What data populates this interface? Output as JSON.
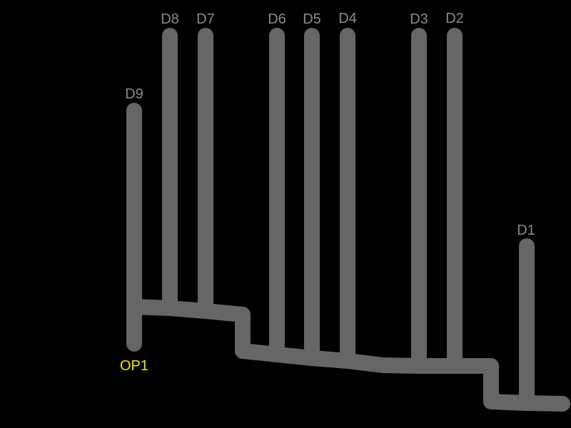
{
  "colors": {
    "background": "#000000",
    "trace": "#666666",
    "drain_label": "#8a8a8a",
    "outlet_label": "#f2e600"
  },
  "outlet": {
    "label": "OP1"
  },
  "drains": [
    {
      "label": "D9"
    },
    {
      "label": "D8"
    },
    {
      "label": "D7"
    },
    {
      "label": "D6"
    },
    {
      "label": "D5"
    },
    {
      "label": "D4"
    },
    {
      "label": "D3"
    },
    {
      "label": "D2"
    },
    {
      "label": "D1"
    }
  ]
}
